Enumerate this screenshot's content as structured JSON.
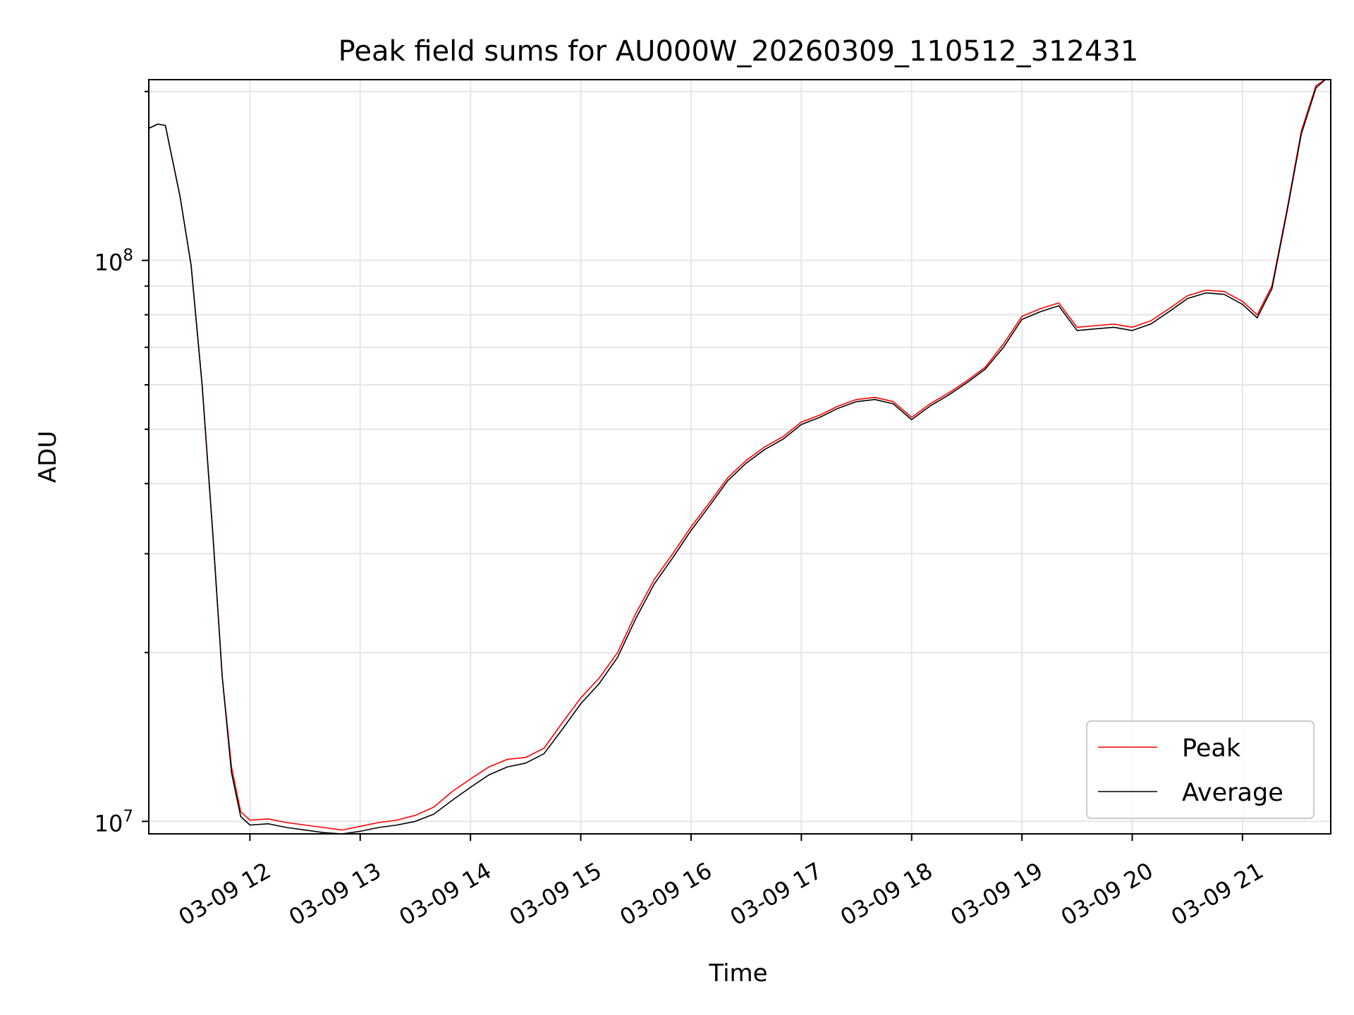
{
  "chart_data": {
    "type": "line",
    "title": "Peak field sums for AU000W_20260309_110512_312431",
    "xlabel": "Time",
    "ylabel": "ADU",
    "yscale": "log",
    "xlim": [
      "03-09 11:05",
      "03-09 21:48"
    ],
    "ylim": [
      9500000,
      210000000
    ],
    "xticks": [
      "03-09 12",
      "03-09 13",
      "03-09 14",
      "03-09 15",
      "03-09 16",
      "03-09 17",
      "03-09 18",
      "03-09 19",
      "03-09 20",
      "03-09 21"
    ],
    "yticks_major": [
      {
        "value": 10000000,
        "base": "10",
        "exp": "7"
      },
      {
        "value": 100000000,
        "base": "10",
        "exp": "8"
      }
    ],
    "grid": true,
    "legend_position": "lower right",
    "series": [
      {
        "name": "Peak",
        "color": "#ff0000",
        "points": [
          [
            "03-09 11:05",
            172000000
          ],
          [
            "03-09 11:10",
            175000000
          ],
          [
            "03-09 11:14",
            174000000
          ],
          [
            "03-09 11:22",
            130000000
          ],
          [
            "03-09 11:28",
            98000000
          ],
          [
            "03-09 11:34",
            60000000
          ],
          [
            "03-09 11:40",
            32000000
          ],
          [
            "03-09 11:45",
            18000000
          ],
          [
            "03-09 11:50",
            12500000
          ],
          [
            "03-09 11:55",
            10400000
          ],
          [
            "03-09 12:00",
            10050000
          ],
          [
            "03-09 12:10",
            10100000
          ],
          [
            "03-09 12:20",
            9950000
          ],
          [
            "03-09 12:30",
            9850000
          ],
          [
            "03-09 12:40",
            9750000
          ],
          [
            "03-09 12:50",
            9650000
          ],
          [
            "03-09 13:00",
            9800000
          ],
          [
            "03-09 13:10",
            9950000
          ],
          [
            "03-09 13:20",
            10050000
          ],
          [
            "03-09 13:30",
            10250000
          ],
          [
            "03-09 13:40",
            10600000
          ],
          [
            "03-09 13:50",
            11300000
          ],
          [
            "03-09 14:00",
            11900000
          ],
          [
            "03-09 14:10",
            12500000
          ],
          [
            "03-09 14:20",
            12900000
          ],
          [
            "03-09 14:30",
            13000000
          ],
          [
            "03-09 14:40",
            13500000
          ],
          [
            "03-09 14:50",
            15000000
          ],
          [
            "03-09 15:00",
            16600000
          ],
          [
            "03-09 15:10",
            18000000
          ],
          [
            "03-09 15:20",
            20000000
          ],
          [
            "03-09 15:30",
            23500000
          ],
          [
            "03-09 15:40",
            27000000
          ],
          [
            "03-09 15:50",
            30000000
          ],
          [
            "03-09 16:00",
            33500000
          ],
          [
            "03-09 16:10",
            37000000
          ],
          [
            "03-09 16:20",
            41000000
          ],
          [
            "03-09 16:30",
            44000000
          ],
          [
            "03-09 16:40",
            46500000
          ],
          [
            "03-09 16:50",
            48500000
          ],
          [
            "03-09 17:00",
            51500000
          ],
          [
            "03-09 17:10",
            53000000
          ],
          [
            "03-09 17:20",
            55000000
          ],
          [
            "03-09 17:30",
            56500000
          ],
          [
            "03-09 17:40",
            57000000
          ],
          [
            "03-09 17:50",
            56000000
          ],
          [
            "03-09 18:00",
            52500000
          ],
          [
            "03-09 18:10",
            55500000
          ],
          [
            "03-09 18:20",
            58000000
          ],
          [
            "03-09 18:30",
            61000000
          ],
          [
            "03-09 18:40",
            64500000
          ],
          [
            "03-09 18:50",
            71000000
          ],
          [
            "03-09 19:00",
            79500000
          ],
          [
            "03-09 19:10",
            82000000
          ],
          [
            "03-09 19:20",
            84000000
          ],
          [
            "03-09 19:30",
            76000000
          ],
          [
            "03-09 19:40",
            76500000
          ],
          [
            "03-09 19:50",
            77000000
          ],
          [
            "03-09 20:00",
            76000000
          ],
          [
            "03-09 20:10",
            78000000
          ],
          [
            "03-09 20:20",
            82000000
          ],
          [
            "03-09 20:30",
            86500000
          ],
          [
            "03-09 20:40",
            88500000
          ],
          [
            "03-09 20:50",
            88000000
          ],
          [
            "03-09 21:00",
            84500000
          ],
          [
            "03-09 21:08",
            80000000
          ],
          [
            "03-09 21:16",
            90000000
          ],
          [
            "03-09 21:24",
            122000000
          ],
          [
            "03-09 21:32",
            170000000
          ],
          [
            "03-09 21:40",
            205000000
          ],
          [
            "03-09 21:45",
            215000000
          ]
        ]
      },
      {
        "name": "Average",
        "color": "#000000",
        "points": [
          [
            "03-09 11:05",
            172000000
          ],
          [
            "03-09 11:10",
            175000000
          ],
          [
            "03-09 11:14",
            174000000
          ],
          [
            "03-09 11:22",
            130000000
          ],
          [
            "03-09 11:28",
            98000000
          ],
          [
            "03-09 11:34",
            60000000
          ],
          [
            "03-09 11:40",
            32000000
          ],
          [
            "03-09 11:45",
            18000000
          ],
          [
            "03-09 11:50",
            12200000
          ],
          [
            "03-09 11:55",
            10200000
          ],
          [
            "03-09 12:00",
            9850000
          ],
          [
            "03-09 12:10",
            9900000
          ],
          [
            "03-09 12:20",
            9750000
          ],
          [
            "03-09 12:30",
            9650000
          ],
          [
            "03-09 12:40",
            9550000
          ],
          [
            "03-09 12:50",
            9450000
          ],
          [
            "03-09 13:00",
            9600000
          ],
          [
            "03-09 13:10",
            9750000
          ],
          [
            "03-09 13:20",
            9850000
          ],
          [
            "03-09 13:30",
            10000000
          ],
          [
            "03-09 13:40",
            10300000
          ],
          [
            "03-09 13:50",
            10900000
          ],
          [
            "03-09 14:00",
            11500000
          ],
          [
            "03-09 14:10",
            12100000
          ],
          [
            "03-09 14:20",
            12500000
          ],
          [
            "03-09 14:30",
            12700000
          ],
          [
            "03-09 14:40",
            13200000
          ],
          [
            "03-09 14:50",
            14600000
          ],
          [
            "03-09 15:00",
            16200000
          ],
          [
            "03-09 15:10",
            17600000
          ],
          [
            "03-09 15:20",
            19600000
          ],
          [
            "03-09 15:30",
            23000000
          ],
          [
            "03-09 15:40",
            26500000
          ],
          [
            "03-09 15:50",
            29500000
          ],
          [
            "03-09 16:00",
            33000000
          ],
          [
            "03-09 16:10",
            36500000
          ],
          [
            "03-09 16:20",
            40500000
          ],
          [
            "03-09 16:30",
            43500000
          ],
          [
            "03-09 16:40",
            46000000
          ],
          [
            "03-09 16:50",
            48000000
          ],
          [
            "03-09 17:00",
            51000000
          ],
          [
            "03-09 17:10",
            52500000
          ],
          [
            "03-09 17:20",
            54500000
          ],
          [
            "03-09 17:30",
            56000000
          ],
          [
            "03-09 17:40",
            56500000
          ],
          [
            "03-09 17:50",
            55500000
          ],
          [
            "03-09 18:00",
            52000000
          ],
          [
            "03-09 18:10",
            55000000
          ],
          [
            "03-09 18:20",
            57500000
          ],
          [
            "03-09 18:30",
            60500000
          ],
          [
            "03-09 18:40",
            64000000
          ],
          [
            "03-09 18:50",
            70000000
          ],
          [
            "03-09 19:00",
            78500000
          ],
          [
            "03-09 19:10",
            81000000
          ],
          [
            "03-09 19:20",
            83000000
          ],
          [
            "03-09 19:30",
            75000000
          ],
          [
            "03-09 19:40",
            75500000
          ],
          [
            "03-09 19:50",
            76000000
          ],
          [
            "03-09 20:00",
            75000000
          ],
          [
            "03-09 20:10",
            77000000
          ],
          [
            "03-09 20:20",
            81000000
          ],
          [
            "03-09 20:30",
            85500000
          ],
          [
            "03-09 20:40",
            87500000
          ],
          [
            "03-09 20:50",
            87000000
          ],
          [
            "03-09 21:00",
            83500000
          ],
          [
            "03-09 21:08",
            79000000
          ],
          [
            "03-09 21:16",
            89000000
          ],
          [
            "03-09 21:24",
            121000000
          ],
          [
            "03-09 21:32",
            168000000
          ],
          [
            "03-09 21:40",
            203000000
          ],
          [
            "03-09 21:45",
            215000000
          ]
        ]
      }
    ]
  }
}
